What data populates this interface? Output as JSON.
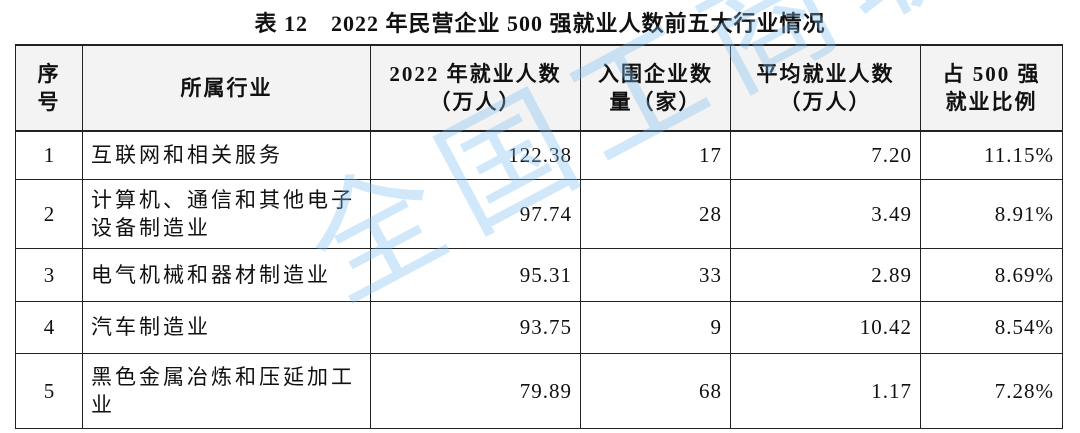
{
  "title": "表 12　2022 年民营企业 500 强就业人数前五大行业情况",
  "table": {
    "headers": [
      [
        "序",
        "号"
      ],
      [
        "所属行业"
      ],
      [
        "2022 年就业人数",
        "（万人）"
      ],
      [
        "入围企业数",
        "量（家）"
      ],
      [
        "平均就业人数",
        "（万人）"
      ],
      [
        "占 500 强",
        "就业比例"
      ]
    ],
    "rows": [
      [
        "1",
        "互联网和相关服务",
        "122.38",
        "17",
        "7.20",
        "11.15%"
      ],
      [
        "2",
        "计算机、通信和其他电子设备制造业",
        "97.74",
        "28",
        "3.49",
        "8.91%"
      ],
      [
        "3",
        "电气机械和器材制造业",
        "95.31",
        "33",
        "2.89",
        "8.69%"
      ],
      [
        "4",
        "汽车制造业",
        "93.75",
        "9",
        "10.42",
        "8.54%"
      ],
      [
        "5",
        "黑色金属冶炼和压延加工业",
        "79.89",
        "68",
        "1.17",
        "7.28%"
      ]
    ]
  },
  "watermark": "全国工商联"
}
